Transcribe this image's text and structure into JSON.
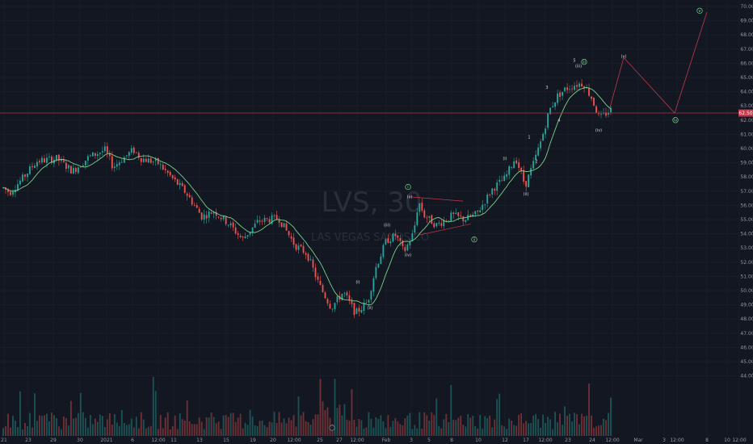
{
  "chart_data": {
    "type": "candlestick",
    "symbol": "LVS, 30",
    "company": "LAS VEGAS SANDS CO",
    "ylim": [
      43.3,
      70.5
    ],
    "y_ticks": [
      "70.00",
      "69.00",
      "68.00",
      "67.00",
      "66.00",
      "65.00",
      "64.00",
      "63.00",
      "62.00",
      "61.00",
      "60.00",
      "59.00",
      "58.00",
      "57.00",
      "56.00",
      "55.00",
      "54.00",
      "53.00",
      "52.00",
      "51.00",
      "50.00",
      "49.00",
      "48.00",
      "47.00",
      "46.00",
      "45.00",
      "44.00"
    ],
    "x_ticks": [
      "21",
      "23",
      "29",
      "30",
      "2021",
      "6",
      "12:00",
      "11",
      "13",
      "15",
      "19",
      "20",
      "12:00",
      "25",
      "27",
      "12:00",
      "Feb",
      "3",
      "5",
      "8",
      "10",
      "12",
      "17",
      "12:00",
      "23",
      "24",
      "12:00",
      "Mar",
      "3",
      "12:00",
      "8",
      "10",
      "12:00"
    ],
    "current_price": 62.5,
    "current_price_label": "62.50",
    "price_anchors": [
      [
        0,
        57.4
      ],
      [
        12,
        56.9
      ],
      [
        28,
        57.9
      ],
      [
        45,
        59.1
      ],
      [
        70,
        59.3
      ],
      [
        90,
        58.4
      ],
      [
        110,
        59.4
      ],
      [
        130,
        59.9
      ],
      [
        140,
        58.7
      ],
      [
        150,
        59.2
      ],
      [
        165,
        59.9
      ],
      [
        175,
        59.3
      ],
      [
        195,
        59.0
      ],
      [
        215,
        57.8
      ],
      [
        230,
        56.9
      ],
      [
        250,
        55.2
      ],
      [
        265,
        55.6
      ],
      [
        285,
        54.6
      ],
      [
        300,
        53.6
      ],
      [
        320,
        54.9
      ],
      [
        345,
        55.1
      ],
      [
        365,
        53.2
      ],
      [
        380,
        52.6
      ],
      [
        395,
        50.4
      ],
      [
        410,
        48.8
      ],
      [
        425,
        49.9
      ],
      [
        440,
        48.4
      ],
      [
        455,
        49.2
      ],
      [
        465,
        51.6
      ],
      [
        478,
        53.5
      ],
      [
        490,
        53.9
      ],
      [
        500,
        52.7
      ],
      [
        512,
        54.1
      ],
      [
        518,
        56.3
      ],
      [
        525,
        55.3
      ],
      [
        540,
        54.6
      ],
      [
        560,
        55.3
      ],
      [
        575,
        55.0
      ],
      [
        590,
        55.4
      ],
      [
        610,
        57.2
      ],
      [
        625,
        57.9
      ],
      [
        638,
        59.4
      ],
      [
        650,
        57.4
      ],
      [
        660,
        58.9
      ],
      [
        670,
        60.6
      ],
      [
        680,
        62.7
      ],
      [
        690,
        63.7
      ],
      [
        700,
        64.2
      ],
      [
        712,
        64.5
      ],
      [
        722,
        64.6
      ],
      [
        732,
        63.6
      ],
      [
        742,
        62.1
      ],
      [
        755,
        62.7
      ]
    ],
    "wave_path": [
      [
        755,
        62.9
      ],
      [
        772,
        66.4
      ],
      [
        835,
        62.5
      ],
      [
        875,
        69.6
      ]
    ],
    "triangle_upper": [
      [
        508,
        56.6
      ],
      [
        573,
        56.3
      ]
    ],
    "triangle_lower": [
      [
        518,
        53.9
      ],
      [
        583,
        54.7
      ]
    ],
    "wave_labels": [
      {
        "text": "(i)",
        "x": 443,
        "y": 50.6,
        "style": "plain"
      },
      {
        "text": "(ii)",
        "x": 458,
        "y": 48.8,
        "style": "plain"
      },
      {
        "text": "(iii)",
        "x": 479,
        "y": 54.6,
        "style": "plain"
      },
      {
        "text": "(iv)",
        "x": 505,
        "y": 52.5,
        "style": "plain"
      },
      {
        "text": "(v)",
        "x": 507,
        "y": 56.6,
        "style": "plain"
      },
      {
        "text": "i",
        "x": 505,
        "y": 57.3,
        "style": "circle"
      },
      {
        "text": "ii",
        "x": 587,
        "y": 53.6,
        "style": "circle"
      },
      {
        "text": "(i)",
        "x": 625,
        "y": 59.3,
        "style": "plain"
      },
      {
        "text": "(ii)",
        "x": 651,
        "y": 56.8,
        "style": "plain"
      },
      {
        "text": "1",
        "x": 655,
        "y": 60.8,
        "style": "plain"
      },
      {
        "text": "2",
        "x": 664,
        "y": 59.1,
        "style": "plain"
      },
      {
        "text": "3",
        "x": 677,
        "y": 64.3,
        "style": "plain"
      },
      {
        "text": "4",
        "x": 692,
        "y": 62.0,
        "style": "plain"
      },
      {
        "text": "5",
        "x": 711,
        "y": 66.2,
        "style": "plain"
      },
      {
        "text": "(iii)",
        "x": 716,
        "y": 65.8,
        "style": "plain"
      },
      {
        "text": "iii",
        "x": 723,
        "y": 66.1,
        "style": "circle"
      },
      {
        "text": "(iv)",
        "x": 741,
        "y": 61.3,
        "style": "plain"
      },
      {
        "text": "(v)",
        "x": 772,
        "y": 66.5,
        "style": "plain"
      },
      {
        "text": "iv",
        "x": 836,
        "y": 62.0,
        "style": "circle"
      },
      {
        "text": "v",
        "x": 866,
        "y": 69.7,
        "style": "circle"
      }
    ],
    "grid": true,
    "volume": true,
    "moving_average": true
  },
  "colors": {
    "background": "#131722",
    "grid": "#1e222d",
    "up": "#26a69a",
    "down": "#ef5350",
    "ma": "#77d28a",
    "wave": "#c0394a",
    "price_line": "#b2323f",
    "price_tag": "#c0394a"
  }
}
